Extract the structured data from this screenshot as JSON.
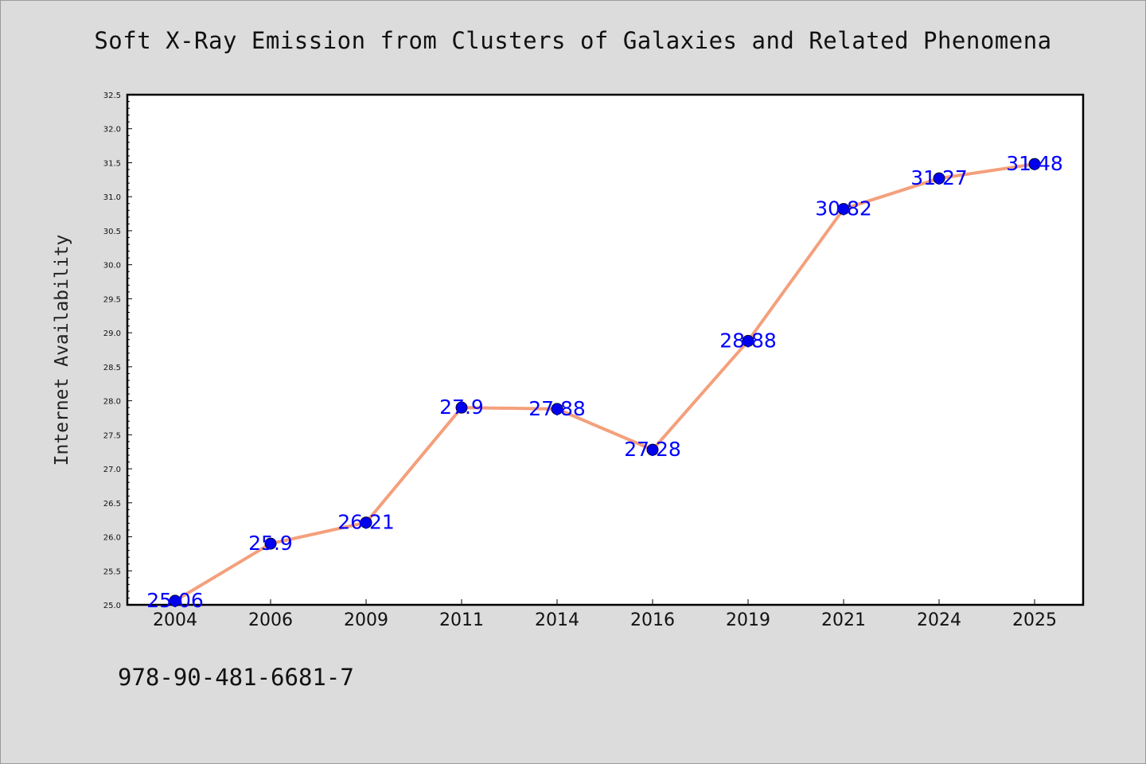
{
  "chart_data": {
    "type": "line",
    "title": "Soft X-Ray Emission from Clusters of Galaxies and Related Phenomena",
    "xlabel": "",
    "ylabel": "Internet Availability",
    "categories": [
      "2004",
      "2006",
      "2009",
      "2011",
      "2014",
      "2016",
      "2019",
      "2021",
      "2024",
      "2025"
    ],
    "series": [
      {
        "values": [
          25.06,
          25.9,
          26.21,
          27.9,
          27.88,
          27.28,
          28.88,
          30.82,
          31.27,
          31.48
        ],
        "labels": [
          "25.06",
          "25.9",
          "26.21",
          "27.9",
          "27.88",
          "27.28",
          "28.88",
          "30.82",
          "31.27",
          "31.48"
        ]
      }
    ],
    "ylim": [
      25.0,
      32.5
    ],
    "yticks": [
      "25.0",
      "25.5",
      "26.0",
      "26.5",
      "27.0",
      "27.5",
      "28.0",
      "28.5",
      "29.0",
      "29.5",
      "30.0",
      "30.5",
      "31.0",
      "31.5",
      "32.0",
      "32.5"
    ],
    "grid": false,
    "line_color": "#f4a07c",
    "marker_color": "#0000ee",
    "label_color": "#0000ff"
  },
  "footer": {
    "text": "978-90-481-6681-7"
  }
}
